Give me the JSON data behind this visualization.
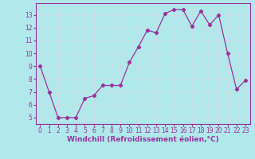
{
  "x": [
    0,
    1,
    2,
    3,
    4,
    5,
    6,
    7,
    8,
    9,
    10,
    11,
    12,
    13,
    14,
    15,
    16,
    17,
    18,
    19,
    20,
    21,
    22,
    23
  ],
  "y": [
    9,
    7,
    5,
    5,
    5,
    6.5,
    6.7,
    7.5,
    7.5,
    7.5,
    9.3,
    10.5,
    11.8,
    11.6,
    13.1,
    13.4,
    13.4,
    12.1,
    13.3,
    12.2,
    13.0,
    10.0,
    7.2,
    7.9
  ],
  "line_color": "#993399",
  "marker": "D",
  "marker_size": 2.2,
  "bg_color": "#b0e8ec",
  "grid_color": "#c8dfe0",
  "xlabel": "Windchill (Refroidissement éolien,°C)",
  "ylabel_ticks": [
    5,
    6,
    7,
    8,
    9,
    10,
    11,
    12,
    13
  ],
  "ylim": [
    4.5,
    13.9
  ],
  "xlim": [
    -0.5,
    23.5
  ],
  "tick_color": "#993399",
  "label_color": "#993399",
  "xlabel_fontsize": 6.5,
  "tick_fontsize": 5.5,
  "linewidth": 0.9
}
